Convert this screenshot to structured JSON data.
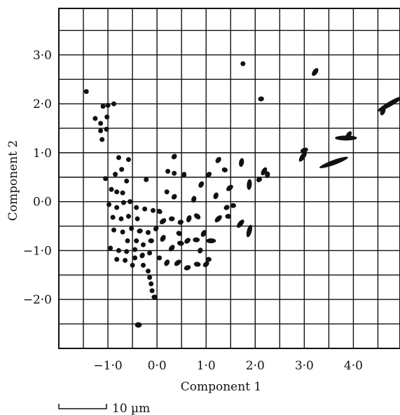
{
  "chart_data": {
    "type": "scatter",
    "title": "",
    "xlabel": "Component 1",
    "ylabel": "Component 2",
    "xlim": [
      -2.0,
      4.95
    ],
    "ylim": [
      -3.0,
      3.95
    ],
    "grid": true,
    "xticks": [
      {
        "value": -1.0,
        "label": "−1·0"
      },
      {
        "value": 0.0,
        "label": "0·0"
      },
      {
        "value": 1.0,
        "label": "1·0"
      },
      {
        "value": 2.0,
        "label": "2·0"
      },
      {
        "value": 3.0,
        "label": "3·0"
      },
      {
        "value": 4.0,
        "label": "4·0"
      }
    ],
    "yticks": [
      {
        "value": 3.0,
        "label": "3·0"
      },
      {
        "value": 2.0,
        "label": "2·0"
      },
      {
        "value": 1.0,
        "label": "1·0"
      },
      {
        "value": 0.0,
        "label": "0·0"
      },
      {
        "value": -1.0,
        "label": "−1·0"
      },
      {
        "value": -2.0,
        "label": "−2·0"
      }
    ],
    "scale_bar": {
      "label": "10 µm"
    },
    "points": [
      {
        "x": -1.44,
        "y": 2.25,
        "len": 0.06,
        "angle": 20
      },
      {
        "x": -1.1,
        "y": 1.95,
        "len": 0.05,
        "angle": 0
      },
      {
        "x": -1.0,
        "y": 1.97,
        "len": 0.05,
        "angle": 30
      },
      {
        "x": -0.88,
        "y": 2.0,
        "len": 0.06,
        "angle": 0
      },
      {
        "x": -1.26,
        "y": 1.7,
        "len": 0.05,
        "angle": 0
      },
      {
        "x": -1.15,
        "y": 1.6,
        "len": 0.05,
        "angle": 0
      },
      {
        "x": -1.02,
        "y": 1.73,
        "len": 0.05,
        "angle": 0
      },
      {
        "x": -1.15,
        "y": 1.45,
        "len": 0.05,
        "angle": 0
      },
      {
        "x": -1.03,
        "y": 1.48,
        "len": 0.05,
        "angle": 0
      },
      {
        "x": -1.12,
        "y": 1.27,
        "len": 0.05,
        "angle": 0
      },
      {
        "x": -1.05,
        "y": 0.47,
        "len": 0.06,
        "angle": 0
      },
      {
        "x": -0.78,
        "y": 0.9,
        "len": 0.08,
        "angle": -40
      },
      {
        "x": -0.58,
        "y": 0.86,
        "len": 0.08,
        "angle": 30
      },
      {
        "x": -0.72,
        "y": 0.66,
        "len": 0.09,
        "angle": 0
      },
      {
        "x": -0.62,
        "y": 0.42,
        "len": 0.06,
        "angle": 0
      },
      {
        "x": -0.85,
        "y": 0.56,
        "len": 0.07,
        "angle": 0
      },
      {
        "x": -0.93,
        "y": 0.25,
        "len": 0.06,
        "angle": 30
      },
      {
        "x": -0.82,
        "y": 0.2,
        "len": 0.06,
        "angle": 0
      },
      {
        "x": -0.7,
        "y": 0.18,
        "len": 0.06,
        "angle": 0
      },
      {
        "x": -0.98,
        "y": -0.06,
        "len": 0.07,
        "angle": 20
      },
      {
        "x": -0.82,
        "y": -0.12,
        "len": 0.07,
        "angle": 0
      },
      {
        "x": -0.68,
        "y": -0.02,
        "len": 0.08,
        "angle": 30
      },
      {
        "x": -0.55,
        "y": 0.0,
        "len": 0.07,
        "angle": -20
      },
      {
        "x": -0.42,
        "y": -0.12,
        "len": 0.08,
        "angle": 0
      },
      {
        "x": -0.25,
        "y": -0.15,
        "len": 0.08,
        "angle": 0
      },
      {
        "x": -0.08,
        "y": -0.18,
        "len": 0.07,
        "angle": 0
      },
      {
        "x": -0.9,
        "y": -0.32,
        "len": 0.07,
        "angle": 0
      },
      {
        "x": -0.73,
        "y": -0.35,
        "len": 0.09,
        "angle": 10
      },
      {
        "x": -0.58,
        "y": -0.3,
        "len": 0.08,
        "angle": -20
      },
      {
        "x": -0.4,
        "y": -0.35,
        "len": 0.1,
        "angle": 60
      },
      {
        "x": -0.88,
        "y": -0.58,
        "len": 0.08,
        "angle": -30
      },
      {
        "x": -0.7,
        "y": -0.62,
        "len": 0.1,
        "angle": 20
      },
      {
        "x": -0.52,
        "y": -0.55,
        "len": 0.1,
        "angle": -40
      },
      {
        "x": -0.35,
        "y": -0.6,
        "len": 0.12,
        "angle": 10
      },
      {
        "x": -0.18,
        "y": -0.63,
        "len": 0.1,
        "angle": 0
      },
      {
        "x": -0.02,
        "y": -0.55,
        "len": 0.12,
        "angle": 60
      },
      {
        "x": -0.95,
        "y": -0.95,
        "len": 0.08,
        "angle": 10
      },
      {
        "x": -0.78,
        "y": -1.0,
        "len": 0.08,
        "angle": -30
      },
      {
        "x": -0.62,
        "y": -1.02,
        "len": 0.1,
        "angle": 20
      },
      {
        "x": -0.45,
        "y": -0.98,
        "len": 0.1,
        "angle": 50
      },
      {
        "x": -0.6,
        "y": -0.8,
        "len": 0.1,
        "angle": 0
      },
      {
        "x": -0.42,
        "y": -0.8,
        "len": 0.1,
        "angle": 70
      },
      {
        "x": -0.28,
        "y": -0.88,
        "len": 0.1,
        "angle": 30
      },
      {
        "x": -0.12,
        "y": -0.8,
        "len": 0.12,
        "angle": 0
      },
      {
        "x": -0.82,
        "y": -1.18,
        "len": 0.09,
        "angle": -20
      },
      {
        "x": -0.65,
        "y": -1.2,
        "len": 0.1,
        "angle": 40
      },
      {
        "x": -0.45,
        "y": -1.15,
        "len": 0.1,
        "angle": 0
      },
      {
        "x": -0.3,
        "y": -1.1,
        "len": 0.12,
        "angle": 60
      },
      {
        "x": -0.15,
        "y": -1.05,
        "len": 0.1,
        "angle": -40
      },
      {
        "x": 0.05,
        "y": -1.15,
        "len": 0.1,
        "angle": 20
      },
      {
        "x": -0.5,
        "y": -1.3,
        "len": 0.08,
        "angle": 0
      },
      {
        "x": -0.28,
        "y": -1.3,
        "len": 0.08,
        "angle": 0
      },
      {
        "x": -0.18,
        "y": -1.42,
        "len": 0.1,
        "angle": 0
      },
      {
        "x": -0.15,
        "y": -1.55,
        "len": 0.08,
        "angle": 0
      },
      {
        "x": -0.12,
        "y": -1.68,
        "len": 0.08,
        "angle": 0
      },
      {
        "x": -0.1,
        "y": -1.82,
        "len": 0.07,
        "angle": 0
      },
      {
        "x": -0.05,
        "y": -1.95,
        "len": 0.12,
        "angle": 0
      },
      {
        "x": -0.38,
        "y": -2.52,
        "len": 0.14,
        "angle": 0,
        "thick": 0.11
      },
      {
        "x": -0.22,
        "y": 0.45,
        "len": 0.08,
        "angle": 0
      },
      {
        "x": 0.35,
        "y": 0.92,
        "len": 0.12,
        "angle": 50
      },
      {
        "x": 0.22,
        "y": 0.62,
        "len": 0.1,
        "angle": 0
      },
      {
        "x": 0.35,
        "y": 0.58,
        "len": 0.1,
        "angle": -10
      },
      {
        "x": 0.55,
        "y": 0.55,
        "len": 0.12,
        "angle": 80
      },
      {
        "x": 0.2,
        "y": 0.2,
        "len": 0.1,
        "angle": -20
      },
      {
        "x": 0.35,
        "y": 0.1,
        "len": 0.12,
        "angle": 50
      },
      {
        "x": 0.05,
        "y": -0.2,
        "len": 0.12,
        "angle": -30
      },
      {
        "x": 0.12,
        "y": -0.4,
        "len": 0.15,
        "angle": 40
      },
      {
        "x": 0.3,
        "y": -0.35,
        "len": 0.12,
        "angle": 0
      },
      {
        "x": 0.48,
        "y": -0.42,
        "len": 0.12,
        "angle": 20
      },
      {
        "x": 0.65,
        "y": -0.35,
        "len": 0.15,
        "angle": 70
      },
      {
        "x": 0.82,
        "y": -0.3,
        "len": 0.15,
        "angle": -40
      },
      {
        "x": 0.12,
        "y": -0.75,
        "len": 0.15,
        "angle": 60
      },
      {
        "x": 0.3,
        "y": -0.95,
        "len": 0.15,
        "angle": 50
      },
      {
        "x": 0.48,
        "y": -0.85,
        "len": 0.14,
        "angle": -10
      },
      {
        "x": 0.62,
        "y": -0.8,
        "len": 0.14,
        "angle": 40
      },
      {
        "x": 0.8,
        "y": -0.78,
        "len": 0.14,
        "angle": 0
      },
      {
        "x": 0.95,
        "y": -0.65,
        "len": 0.15,
        "angle": 60
      },
      {
        "x": 1.1,
        "y": -0.8,
        "len": 0.2,
        "angle": 0
      },
      {
        "x": 0.2,
        "y": -1.25,
        "len": 0.14,
        "angle": 60
      },
      {
        "x": 0.42,
        "y": -1.25,
        "len": 0.16,
        "angle": 40
      },
      {
        "x": 0.62,
        "y": -1.35,
        "len": 0.14,
        "angle": 20
      },
      {
        "x": 0.82,
        "y": -1.28,
        "len": 0.14,
        "angle": -10
      },
      {
        "x": 1.0,
        "y": -1.28,
        "len": 0.14,
        "angle": 40
      },
      {
        "x": 1.05,
        "y": -1.18,
        "len": 0.12,
        "angle": 0
      },
      {
        "x": 0.88,
        "y": -1.0,
        "len": 0.12,
        "angle": 70
      },
      {
        "x": 0.45,
        "y": -0.65,
        "len": 0.12,
        "angle": -30
      },
      {
        "x": 0.75,
        "y": 0.05,
        "len": 0.14,
        "angle": 75
      },
      {
        "x": 0.9,
        "y": 0.35,
        "len": 0.14,
        "angle": 60
      },
      {
        "x": 1.05,
        "y": 0.55,
        "len": 0.14,
        "angle": 40
      },
      {
        "x": 1.25,
        "y": 0.85,
        "len": 0.14,
        "angle": 50
      },
      {
        "x": 1.38,
        "y": 0.65,
        "len": 0.12,
        "angle": -20
      },
      {
        "x": 1.2,
        "y": 0.12,
        "len": 0.14,
        "angle": 70
      },
      {
        "x": 1.25,
        "y": -0.35,
        "len": 0.18,
        "angle": 45
      },
      {
        "x": 1.45,
        "y": -0.3,
        "len": 0.12,
        "angle": 0
      },
      {
        "x": 1.48,
        "y": 0.28,
        "len": 0.16,
        "angle": 40
      },
      {
        "x": 1.42,
        "y": -0.12,
        "len": 0.12,
        "angle": 30
      },
      {
        "x": 1.55,
        "y": -0.08,
        "len": 0.12,
        "angle": 0
      },
      {
        "x": 1.7,
        "y": -0.45,
        "len": 0.2,
        "angle": 50
      },
      {
        "x": 1.88,
        "y": -0.6,
        "len": 0.26,
        "angle": 75
      },
      {
        "x": 1.72,
        "y": 0.8,
        "len": 0.18,
        "angle": 80
      },
      {
        "x": 1.88,
        "y": 0.35,
        "len": 0.22,
        "angle": 85
      },
      {
        "x": 1.75,
        "y": 2.82,
        "len": 0.1,
        "angle": 0
      },
      {
        "x": 2.12,
        "y": 2.1,
        "len": 0.12,
        "angle": 10
      },
      {
        "x": 2.18,
        "y": 0.62,
        "len": 0.18,
        "angle": 60
      },
      {
        "x": 2.08,
        "y": 0.45,
        "len": 0.12,
        "angle": 30
      },
      {
        "x": 2.25,
        "y": 0.55,
        "len": 0.14,
        "angle": 80
      },
      {
        "x": 2.97,
        "y": 0.92,
        "len": 0.24,
        "angle": 55
      },
      {
        "x": 3.0,
        "y": 1.05,
        "len": 0.16,
        "angle": 20
      },
      {
        "x": 3.22,
        "y": 2.65,
        "len": 0.18,
        "angle": 55
      },
      {
        "x": 3.6,
        "y": 0.8,
        "len": 0.62,
        "angle": 20
      },
      {
        "x": 3.85,
        "y": 1.3,
        "len": 0.45,
        "angle": 0
      },
      {
        "x": 3.9,
        "y": 1.35,
        "len": 0.2,
        "angle": 60
      },
      {
        "x": 4.75,
        "y": 2.0,
        "len": 0.6,
        "angle": 30
      },
      {
        "x": 4.6,
        "y": 1.85,
        "len": 0.18,
        "angle": 70
      }
    ]
  }
}
